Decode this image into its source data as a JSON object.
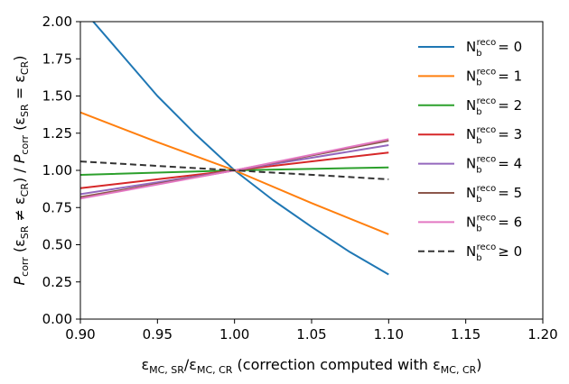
{
  "chart_data": {
    "type": "line",
    "title": "",
    "xlabel": "ε_MC,SR/ε_MC,CR (correction computed with ε_MC,CR)",
    "ylabel": "P_corr(ε_SR ≠ ε_CR) / P_corr(ε_SR = ε_CR)",
    "xlim": [
      0.9,
      1.2
    ],
    "ylim": [
      0.0,
      2.0
    ],
    "xticks": [
      "0.90",
      "0.95",
      "1.00",
      "1.05",
      "1.10",
      "1.15",
      "1.20"
    ],
    "yticks": [
      "0.00",
      "0.25",
      "0.50",
      "0.75",
      "1.00",
      "1.25",
      "1.50",
      "1.75",
      "2.00"
    ],
    "grid": false,
    "legend_position": "top-right",
    "series": [
      {
        "name": "N_b^reco = 0",
        "base": "N",
        "sub": "b",
        "sup": "reco",
        "rel": "= 0",
        "color": "#1f77b4",
        "dash": "",
        "x": [
          0.9,
          0.925,
          0.95,
          0.975,
          1.0,
          1.025,
          1.05,
          1.075,
          1.1
        ],
        "y": [
          2.1,
          1.8,
          1.5,
          1.24,
          1.0,
          0.8,
          0.62,
          0.45,
          0.3
        ]
      },
      {
        "name": "N_b^reco = 1",
        "base": "N",
        "sub": "b",
        "sup": "reco",
        "rel": "= 1",
        "color": "#ff7f0e",
        "dash": "",
        "x": [
          0.9,
          0.95,
          1.0,
          1.05,
          1.1
        ],
        "y": [
          1.39,
          1.19,
          1.0,
          0.78,
          0.57
        ]
      },
      {
        "name": "N_b^reco = 2",
        "base": "N",
        "sub": "b",
        "sup": "reco",
        "rel": "= 2",
        "color": "#2ca02c",
        "dash": "",
        "x": [
          0.9,
          1.0,
          1.1
        ],
        "y": [
          0.97,
          1.0,
          1.02
        ]
      },
      {
        "name": "N_b^reco = 3",
        "base": "N",
        "sub": "b",
        "sup": "reco",
        "rel": "= 3",
        "color": "#d62728",
        "dash": "",
        "x": [
          0.9,
          1.0,
          1.1
        ],
        "y": [
          0.88,
          1.0,
          1.12
        ]
      },
      {
        "name": "N_b^reco = 4",
        "base": "N",
        "sub": "b",
        "sup": "reco",
        "rel": "= 4",
        "color": "#9467bd",
        "dash": "",
        "x": [
          0.9,
          1.0,
          1.1
        ],
        "y": [
          0.84,
          1.0,
          1.17
        ]
      },
      {
        "name": "N_b^reco = 5",
        "base": "N",
        "sub": "b",
        "sup": "reco",
        "rel": "= 5",
        "color": "#8c564b",
        "dash": "",
        "x": [
          0.9,
          1.0,
          1.1
        ],
        "y": [
          0.82,
          1.0,
          1.2
        ]
      },
      {
        "name": "N_b^reco = 6",
        "base": "N",
        "sub": "b",
        "sup": "reco",
        "rel": "= 6",
        "color": "#e377c2",
        "dash": "",
        "x": [
          0.9,
          1.0,
          1.1
        ],
        "y": [
          0.81,
          1.0,
          1.21
        ]
      },
      {
        "name": "N_b^reco ≥ 0",
        "base": "N",
        "sub": "b",
        "sup": "reco",
        "rel": "≥ 0",
        "color": "#333333",
        "dash": "7,4",
        "x": [
          0.9,
          1.0,
          1.1
        ],
        "y": [
          1.06,
          1.0,
          0.94
        ]
      }
    ]
  }
}
